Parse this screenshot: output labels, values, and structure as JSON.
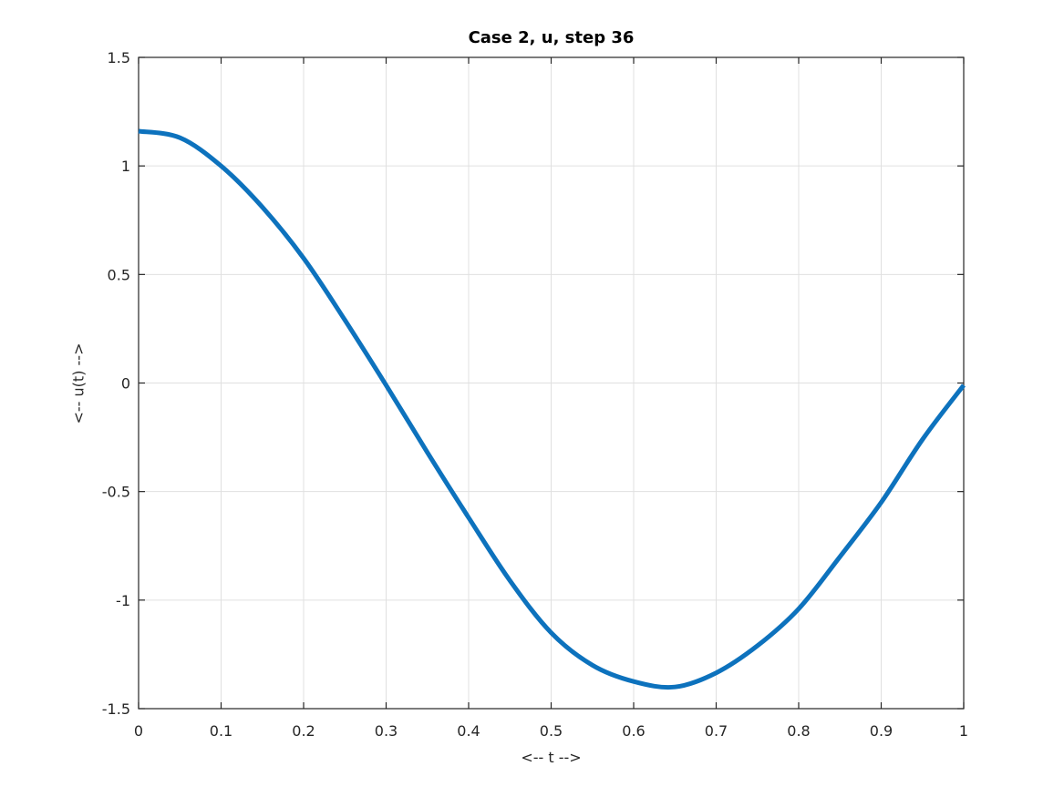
{
  "figure": {
    "background_color": "#ffffff"
  },
  "chart_data": {
    "type": "line",
    "title": "Case 2, u, step 36",
    "xlabel": "<-- t -->",
    "ylabel": "<-- u(t) -->",
    "x": [
      0,
      0.05,
      0.1,
      0.15,
      0.2,
      0.25,
      0.3,
      0.35,
      0.4,
      0.45,
      0.5,
      0.55,
      0.6,
      0.65,
      0.7,
      0.75,
      0.8,
      0.85,
      0.9,
      0.95,
      1.0
    ],
    "series": [
      {
        "name": "u",
        "color": "#0d72bd",
        "line_width": 5,
        "values": [
          1.16,
          1.13,
          1.0,
          0.81,
          0.575,
          0.29,
          -0.01,
          -0.32,
          -0.62,
          -0.91,
          -1.15,
          -1.3,
          -1.375,
          -1.4,
          -1.335,
          -1.21,
          -1.04,
          -0.8,
          -0.55,
          -0.26,
          -0.01
        ]
      }
    ],
    "xlim": [
      0,
      1
    ],
    "ylim": [
      -1.5,
      1.5
    ],
    "xticks": [
      0,
      0.1,
      0.2,
      0.3,
      0.4,
      0.5,
      0.6,
      0.7,
      0.8,
      0.9,
      1
    ],
    "xtick_labels": [
      "0",
      "0.1",
      "0.2",
      "0.3",
      "0.4",
      "0.5",
      "0.6",
      "0.7",
      "0.8",
      "0.9",
      "1"
    ],
    "yticks": [
      -1.5,
      -1,
      -0.5,
      0,
      0.5,
      1,
      1.5
    ],
    "ytick_labels": [
      "-1.5",
      "-1",
      "-0.5",
      "0",
      "0.5",
      "1",
      "1.5"
    ],
    "grid": true,
    "grid_color": "#e0e0e0",
    "axis_color": "#262626",
    "tick_label_color": "#262626",
    "tick_font_size": 16,
    "box": true,
    "tick_direction": "in",
    "legend_position": "none"
  }
}
